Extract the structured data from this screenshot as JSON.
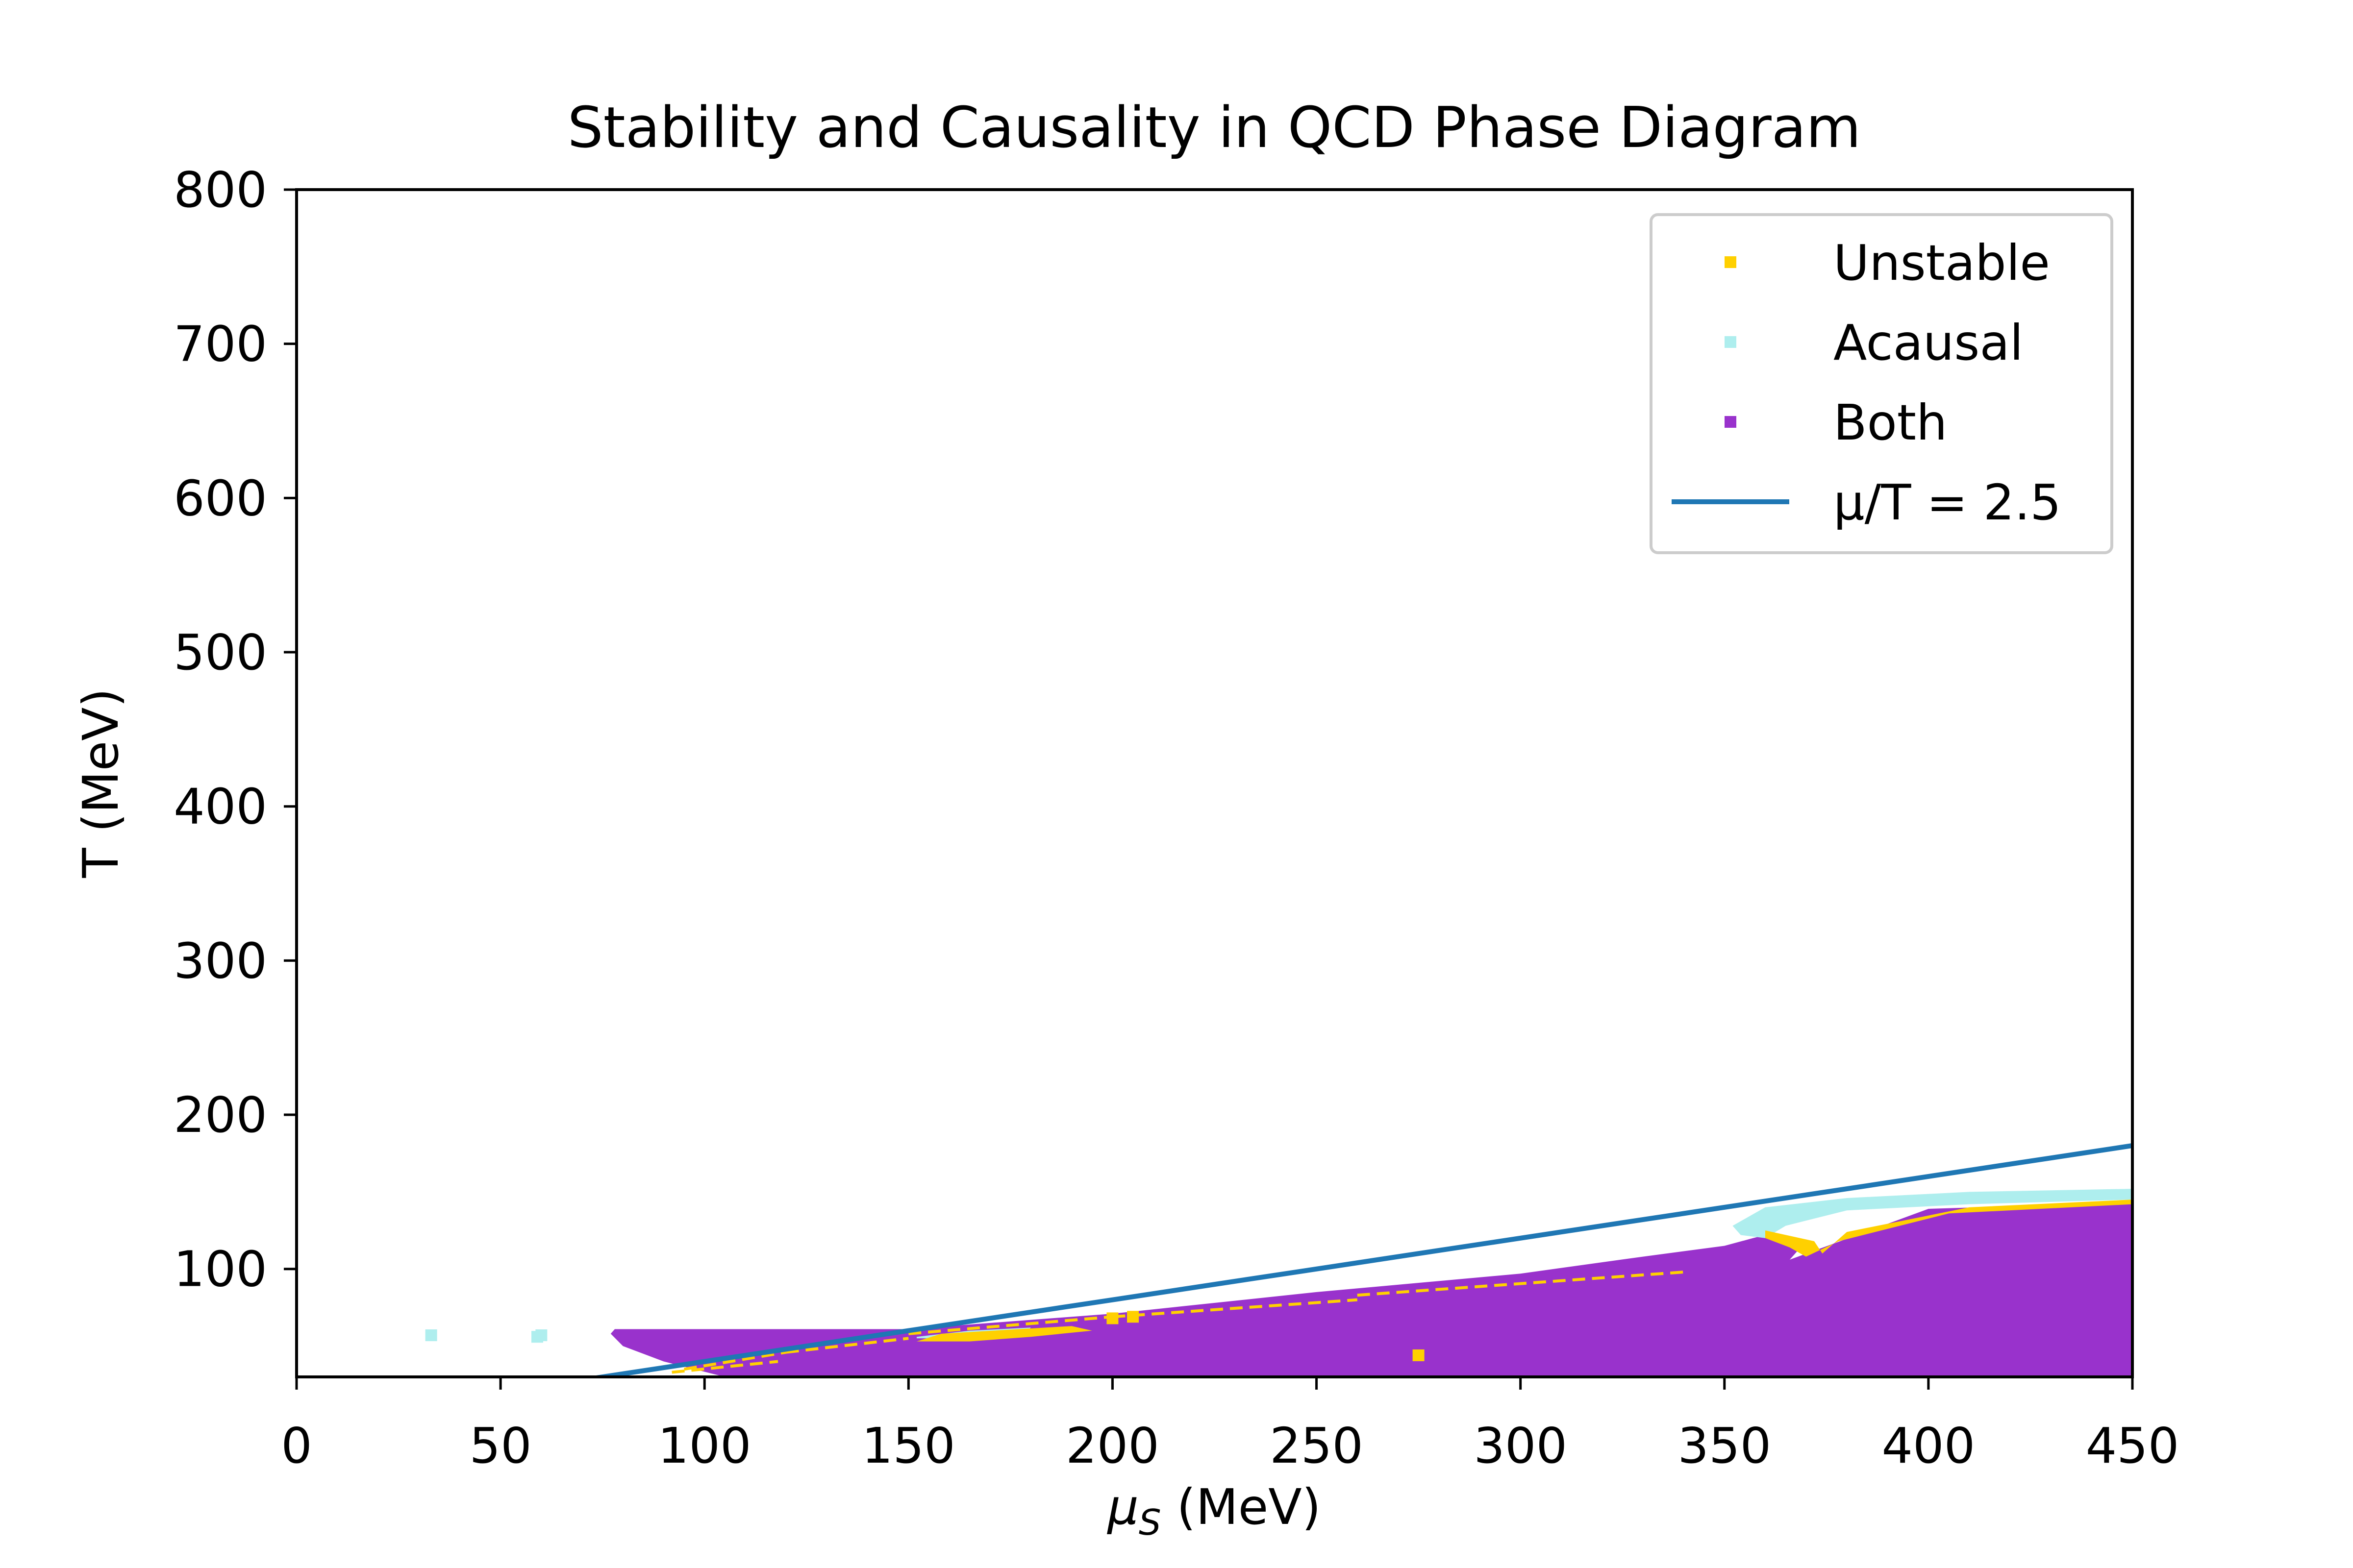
{
  "colors": {
    "unstable": "#ffd000",
    "acausal": "#aeeeee",
    "both": "#9932cc",
    "line": "#1f77b4"
  },
  "chart_data": {
    "type": "scatter",
    "title": "Stability and Causality in QCD Phase Diagram",
    "xlabel_symbol": "μ",
    "xlabel_sub": "S",
    "xlabel_rest": " (MeV)",
    "ylabel": "T (MeV)",
    "xlim": [
      0,
      450
    ],
    "ylim": [
      30,
      800
    ],
    "xticks": [
      "0",
      "50",
      "100",
      "150",
      "200",
      "250",
      "300",
      "350",
      "400",
      "450"
    ],
    "yticks": [
      "100",
      "200",
      "300",
      "400",
      "500",
      "600",
      "700",
      "800"
    ],
    "grid": false,
    "legend_position": "top-right",
    "legend": [
      {
        "key": "unstable",
        "label": "Unstable",
        "kind": "marker"
      },
      {
        "key": "acausal",
        "label": "Acausal",
        "kind": "marker"
      },
      {
        "key": "both",
        "label": "Both",
        "kind": "marker"
      },
      {
        "key": "line",
        "label": "μ/T = 2.5",
        "kind": "line"
      }
    ],
    "line": {
      "name": "μ/T = 2.5",
      "slope": 0.4,
      "x": [
        72,
        450
      ],
      "y": [
        28.8,
        180
      ]
    },
    "regions": [
      {
        "series": "both",
        "polygon": [
          [
            77,
            58
          ],
          [
            78,
            61
          ],
          [
            110,
            61
          ],
          [
            150,
            61
          ],
          [
            200,
            71
          ],
          [
            250,
            85
          ],
          [
            300,
            97
          ],
          [
            330,
            108
          ],
          [
            350,
            115
          ],
          [
            357,
            120
          ],
          [
            360,
            122
          ],
          [
            368,
            112
          ],
          [
            366,
            106
          ],
          [
            400,
            139
          ],
          [
            450,
            143
          ],
          [
            450,
            30
          ],
          [
            105,
            30
          ],
          [
            90,
            40
          ],
          [
            80,
            50
          ],
          [
            77,
            58
          ]
        ]
      },
      {
        "series": "acausal",
        "polygon": [
          [
            352,
            128
          ],
          [
            360,
            140
          ],
          [
            380,
            146
          ],
          [
            410,
            150
          ],
          [
            450,
            152
          ],
          [
            450,
            145
          ],
          [
            410,
            142
          ],
          [
            380,
            138
          ],
          [
            365,
            128
          ],
          [
            360,
            120
          ],
          [
            354,
            122
          ],
          [
            352,
            128
          ]
        ]
      },
      {
        "series": "unstable",
        "polygon": [
          [
            360,
            125
          ],
          [
            372,
            118
          ],
          [
            374,
            110
          ],
          [
            380,
            124
          ],
          [
            410,
            140
          ],
          [
            450,
            145
          ],
          [
            450,
            142
          ],
          [
            405,
            136
          ],
          [
            378,
            118
          ],
          [
            370,
            108
          ],
          [
            366,
            114
          ],
          [
            360,
            120
          ]
        ]
      },
      {
        "series": "acausal",
        "polygon": [
          [
            152,
            56
          ],
          [
            165,
            60
          ],
          [
            180,
            62
          ],
          [
            178,
            57
          ],
          [
            165,
            55
          ],
          [
            152,
            55
          ]
        ]
      },
      {
        "series": "unstable",
        "polygon": [
          [
            152,
            53
          ],
          [
            158,
            58
          ],
          [
            190,
            63
          ],
          [
            195,
            60
          ],
          [
            180,
            56
          ],
          [
            165,
            53
          ]
        ]
      }
    ],
    "points": [
      {
        "series": "acausal",
        "x": 33,
        "y": 57
      },
      {
        "series": "acausal",
        "x": 59,
        "y": 56
      },
      {
        "series": "acausal",
        "x": 60,
        "y": 57
      },
      {
        "series": "unstable",
        "x": 200,
        "y": 68
      },
      {
        "series": "unstable",
        "x": 205,
        "y": 69
      },
      {
        "series": "unstable",
        "x": 275,
        "y": 44
      }
    ],
    "streaks": [
      {
        "series": "unstable",
        "x": [
          95,
          120
        ],
        "y": [
          35,
          46
        ]
      },
      {
        "series": "unstable",
        "x": [
          120,
          150
        ],
        "y": [
          46,
          55
        ]
      },
      {
        "series": "unstable",
        "x": [
          150,
          200
        ],
        "y": [
          58,
          69
        ]
      },
      {
        "series": "unstable",
        "x": [
          200,
          260
        ],
        "y": [
          69,
          80
        ]
      },
      {
        "series": "unstable",
        "x": [
          260,
          340
        ],
        "y": [
          83,
          98
        ]
      },
      {
        "series": "unstable",
        "x": [
          92,
          118
        ],
        "y": [
          33,
          40
        ]
      }
    ]
  }
}
